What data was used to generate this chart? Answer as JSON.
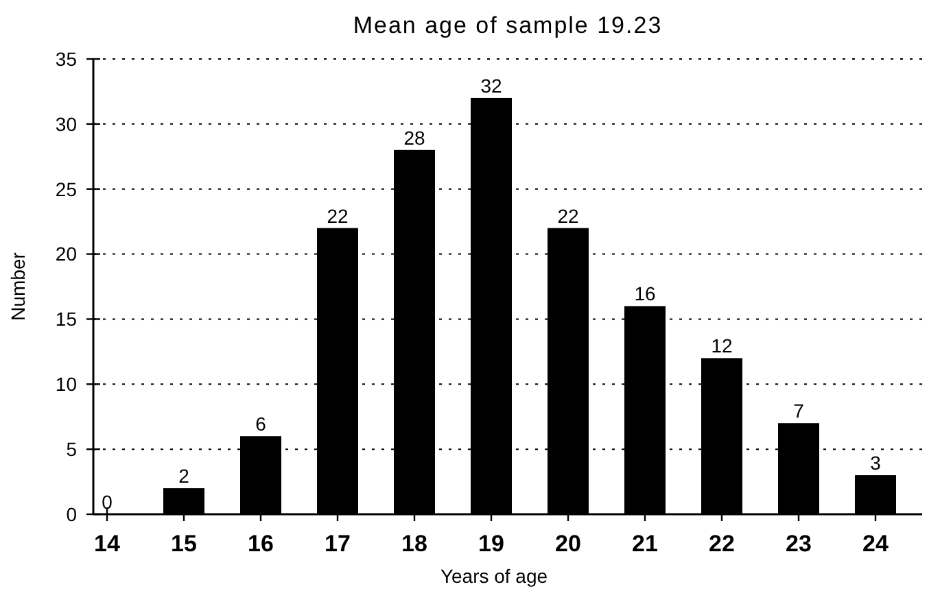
{
  "chart_data": {
    "type": "bar",
    "title": "Mean age of sample 19.23",
    "xlabel": "Years of age",
    "ylabel": "Number",
    "categories": [
      "14",
      "15",
      "16",
      "17",
      "18",
      "19",
      "20",
      "21",
      "22",
      "23",
      "24"
    ],
    "values": [
      0,
      2,
      6,
      22,
      28,
      32,
      22,
      16,
      12,
      7,
      3
    ],
    "color": "#000000",
    "data_labels": true,
    "ylim": [
      0,
      35
    ],
    "yticks": [
      0,
      5,
      10,
      15,
      20,
      25,
      30,
      35
    ],
    "grid": "y"
  }
}
